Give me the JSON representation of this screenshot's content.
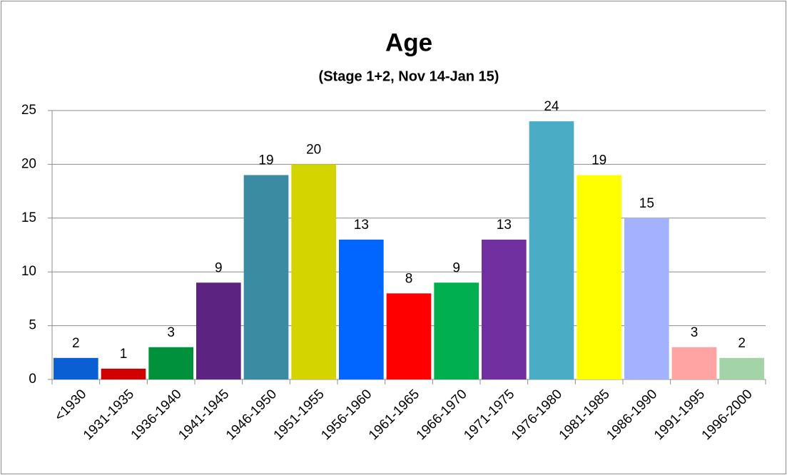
{
  "chart_data": {
    "type": "bar",
    "title": "Age",
    "subtitle": "(Stage 1+2, Nov 14-Jan 15)",
    "categories": [
      "<1930",
      "1931-1935",
      "1936-1940",
      "1941-1945",
      "1946-1950",
      "1951-1955",
      "1956-1960",
      "1961-1965",
      "1966-1970",
      "1971-1975",
      "1976-1980",
      "1981-1985",
      "1986-1990",
      "1991-1995",
      "1996-2000"
    ],
    "values": [
      2,
      1,
      3,
      9,
      19,
      20,
      13,
      8,
      9,
      13,
      24,
      19,
      15,
      3,
      2
    ],
    "colors": [
      "#0a5fd3",
      "#d00000",
      "#00913d",
      "#5c2480",
      "#3b8ba3",
      "#d4d400",
      "#0066ff",
      "#ff0000",
      "#00b050",
      "#7030a0",
      "#4bacc6",
      "#ffff00",
      "#a3b2ff",
      "#ffa3a3",
      "#a3d4a8"
    ],
    "ylim": [
      0,
      25
    ],
    "yticks": [
      0,
      5,
      10,
      15,
      20,
      25
    ],
    "grid": true
  }
}
